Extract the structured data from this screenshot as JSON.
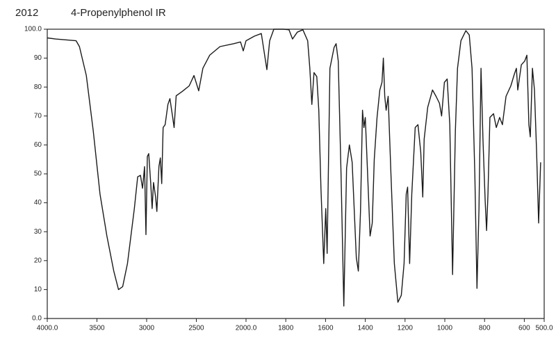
{
  "chart_data": {
    "type": "line",
    "title": "4-Propenylphenol IR",
    "subtitle": "2012",
    "x": [
      4000,
      3917,
      3710,
      3676,
      3607,
      3538,
      3469,
      3400,
      3331,
      3283,
      3241,
      3193,
      3124,
      3090,
      3062,
      3041,
      3021,
      3007,
      2993,
      2979,
      2959,
      2945,
      2931,
      2910,
      2897,
      2876,
      2862,
      2848,
      2834,
      2814,
      2786,
      2766,
      2738,
      2724,
      2703,
      2641,
      2572,
      2524,
      2476,
      2434,
      2366,
      2262,
      2124,
      2055,
      2028,
      2000,
      1958,
      1923,
      1895,
      1881,
      1860,
      1836,
      1811,
      1784,
      1766,
      1742,
      1714,
      1690,
      1679,
      1669,
      1658,
      1644,
      1634,
      1623,
      1609,
      1599,
      1592,
      1578,
      1557,
      1547,
      1536,
      1522,
      1508,
      1494,
      1480,
      1466,
      1456,
      1445,
      1435,
      1424,
      1414,
      1407,
      1400,
      1390,
      1376,
      1365,
      1355,
      1341,
      1327,
      1316,
      1309,
      1302,
      1295,
      1285,
      1271,
      1254,
      1236,
      1219,
      1205,
      1194,
      1187,
      1177,
      1166,
      1149,
      1135,
      1121,
      1111,
      1104,
      1086,
      1062,
      1044,
      1027,
      1016,
      1002,
      988,
      975,
      961,
      947,
      936,
      919,
      894,
      877,
      863,
      849,
      838,
      828,
      818,
      808,
      797,
      790,
      783,
      773,
      755,
      741,
      724,
      710,
      692,
      668,
      650,
      640,
      633,
      615,
      598,
      587,
      577,
      570,
      559,
      549,
      538,
      528,
      518
    ],
    "values": [
      97,
      96.6,
      96,
      94,
      84,
      65,
      43,
      28.5,
      16.4,
      10,
      11,
      19,
      38,
      49,
      49.5,
      45,
      52.5,
      29,
      56,
      57,
      46.6,
      38,
      47,
      42,
      37,
      52.6,
      55.5,
      46.6,
      66,
      67,
      74,
      76,
      69.5,
      66,
      77,
      78.5,
      80.4,
      84,
      78.7,
      86.5,
      91,
      94,
      95,
      95.6,
      92.5,
      96,
      97.6,
      98.5,
      86,
      96,
      100,
      100,
      100,
      99.8,
      96.6,
      99,
      99.8,
      96,
      86.5,
      74,
      85,
      83.6,
      72,
      45,
      19,
      38,
      22.5,
      86.5,
      93.7,
      95,
      89,
      50,
      4.3,
      52,
      60,
      54,
      38,
      21,
      16.4,
      37,
      72,
      66,
      69.5,
      52.6,
      28.5,
      33,
      55,
      69.5,
      79,
      81.6,
      90,
      76.8,
      72,
      76.8,
      50,
      19,
      5.6,
      8,
      19,
      43,
      45.4,
      19,
      43,
      66,
      67,
      57.5,
      42,
      62,
      73,
      79,
      76.8,
      74.4,
      70,
      81.6,
      82.8,
      67,
      15.2,
      64.7,
      86.5,
      96,
      99.5,
      98,
      86.5,
      50,
      10.4,
      38,
      86.5,
      62,
      40.6,
      30.4,
      43,
      69.5,
      70.8,
      66,
      69.5,
      67,
      76.8,
      80.4,
      84.5,
      86.5,
      79,
      87.7,
      89,
      91,
      67,
      62.8,
      86.5,
      79,
      57.5,
      33,
      54
    ],
    "color": "#1a1a1a",
    "xlim": [
      4000,
      500
    ],
    "x_scale_break": 2000,
    "x_scale_ratio": 2,
    "xticks": [
      {
        "value": 4000,
        "label": "4000.0"
      },
      3500,
      3000,
      2500,
      {
        "value": 2000,
        "label": "2000.0"
      },
      1800,
      1600,
      1400,
      1200,
      1000,
      800,
      600,
      {
        "value": 500,
        "label": "500.0"
      }
    ],
    "ylim": [
      0,
      100
    ],
    "yticks": [
      {
        "value": 0,
        "label": "0.0"
      },
      10,
      20,
      30,
      40,
      50,
      60,
      70,
      80,
      90,
      {
        "value": 100,
        "label": "100.0"
      }
    ],
    "grid": false
  }
}
